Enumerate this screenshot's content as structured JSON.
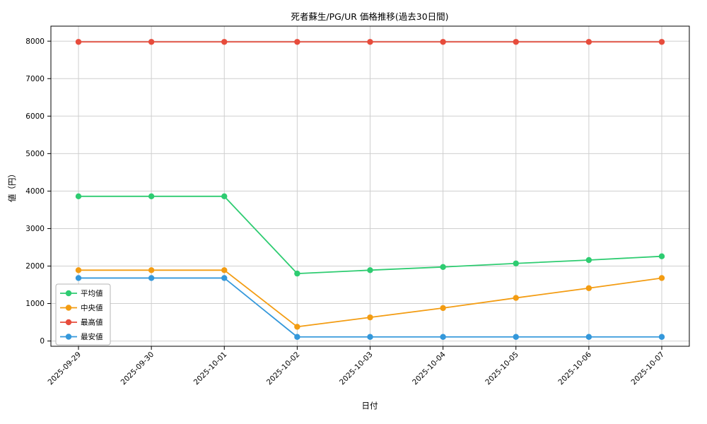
{
  "chart_data": {
    "type": "line",
    "title": "死者蘇生/PG/UR 価格推移(過去30日間)",
    "xlabel": "日付",
    "ylabel": "値（円）",
    "x": [
      "2025-09-29",
      "2025-09-30",
      "2025-10-01",
      "2025-10-02",
      "2025-10-03",
      "2025-10-04",
      "2025-10-05",
      "2025-10-06",
      "2025-10-07"
    ],
    "yticks": [
      0,
      1000,
      2000,
      3000,
      4000,
      5000,
      6000,
      7000,
      8000
    ],
    "ylim": [
      -140,
      8400
    ],
    "grid": true,
    "legend_position": "lower left",
    "series": [
      {
        "name": "平均値",
        "color": "#2ecc71",
        "values": [
          3860,
          3860,
          3860,
          1800,
          1890,
          1975,
          2070,
          2160,
          2260
        ]
      },
      {
        "name": "中央値",
        "color": "#f39c12",
        "values": [
          1890,
          1890,
          1890,
          380,
          630,
          880,
          1150,
          1410,
          1680
        ]
      },
      {
        "name": "最高値",
        "color": "#e74c3c",
        "values": [
          7980,
          7980,
          7980,
          7980,
          7980,
          7980,
          7980,
          7980,
          7980
        ]
      },
      {
        "name": "最安値",
        "color": "#3498db",
        "values": [
          1680,
          1680,
          1680,
          110,
          110,
          110,
          110,
          110,
          110
        ]
      }
    ],
    "frame_color": "#000000",
    "gridline_color": "#cfcfcf",
    "background_color": "#ffffff"
  }
}
